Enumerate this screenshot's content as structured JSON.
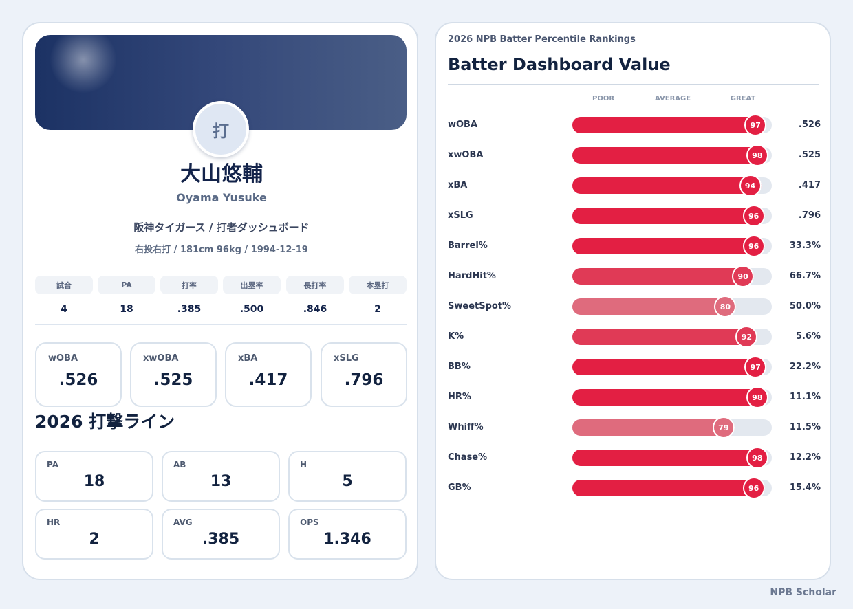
{
  "profile": {
    "avatar_text": "打",
    "name_jp": "大山悠輔",
    "name_en": "Oyama Yusuke",
    "team_line": "阪神タイガース / 打者ダッシュボード",
    "bio_line": "右投右打 / 181cm 96kg / 1994-12-19"
  },
  "summary": {
    "headers": [
      "試合",
      "PA",
      "打率",
      "出塁率",
      "長打率",
      "本塁打"
    ],
    "values": [
      "4",
      "18",
      ".385",
      ".500",
      ".846",
      "2"
    ]
  },
  "metrics": [
    {
      "label": "wOBA",
      "value": ".526"
    },
    {
      "label": "xwOBA",
      "value": ".525"
    },
    {
      "label": "xBA",
      "value": ".417"
    },
    {
      "label": "xSLG",
      "value": ".796"
    }
  ],
  "batting_line": {
    "title": "2026 打撃ライン",
    "cells": [
      {
        "label": "PA",
        "value": "18"
      },
      {
        "label": "AB",
        "value": "13"
      },
      {
        "label": "H",
        "value": "5"
      },
      {
        "label": "HR",
        "value": "2"
      },
      {
        "label": "AVG",
        "value": ".385"
      },
      {
        "label": "OPS",
        "value": "1.346"
      }
    ]
  },
  "rankings": {
    "subtitle": "2026 NPB Batter Percentile Rankings",
    "title": "Batter Dashboard Value",
    "scale": [
      "POOR",
      "AVERAGE",
      "GREAT"
    ],
    "rows": [
      {
        "metric": "wOBA",
        "percentile": 97,
        "value": ".526"
      },
      {
        "metric": "xwOBA",
        "percentile": 98,
        "value": ".525"
      },
      {
        "metric": "xBA",
        "percentile": 94,
        "value": ".417"
      },
      {
        "metric": "xSLG",
        "percentile": 96,
        "value": ".796"
      },
      {
        "metric": "Barrel%",
        "percentile": 96,
        "value": "33.3%"
      },
      {
        "metric": "HardHit%",
        "percentile": 90,
        "value": "66.7%"
      },
      {
        "metric": "SweetSpot%",
        "percentile": 80,
        "value": "50.0%"
      },
      {
        "metric": "K%",
        "percentile": 92,
        "value": "5.6%"
      },
      {
        "metric": "BB%",
        "percentile": 97,
        "value": "22.2%"
      },
      {
        "metric": "HR%",
        "percentile": 98,
        "value": "11.1%"
      },
      {
        "metric": "Whiff%",
        "percentile": 79,
        "value": "11.5%"
      },
      {
        "metric": "Chase%",
        "percentile": 98,
        "value": "12.2%"
      },
      {
        "metric": "GB%",
        "percentile": 96,
        "value": "15.4%"
      }
    ]
  },
  "colors": {
    "great": "#e31f43",
    "high": "#e03a56",
    "good": "#df6b7d",
    "track": "#e3e8ef"
  },
  "footer": "NPB Scholar"
}
